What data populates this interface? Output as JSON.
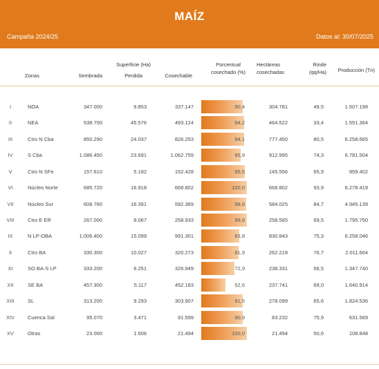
{
  "header": {
    "title": "MAÍZ",
    "campaign": "Campaña 2024/25",
    "date": "Datos al: 30/07/2025",
    "bg_color": "#e07a1c"
  },
  "columns": {
    "zonas": "Zonas",
    "superficie": "Superficie (Ha)",
    "sembrada": "Sembrada",
    "perdida": "Perdida",
    "cosechable": "Cosechable",
    "porcentual_1": "Porcentual",
    "porcentual_2": "cosechado (%)",
    "hectareas_1": "Hectáreas",
    "hectareas_2": "cosechadas",
    "rinde_1": "Rinde",
    "rinde_2": "(qq/Ha)",
    "produccion": "Producción (Tn)"
  },
  "rows": [
    {
      "num": "I",
      "zona": "NOA",
      "sembrada": "347.000",
      "perdida": "9.853",
      "cosechable": "337.147",
      "pct": 90.4,
      "pct_label": "90,4",
      "hectareas": "304.781",
      "rinde": "49,5",
      "produccion": "1.507.198"
    },
    {
      "num": "II",
      "zona": "NEA",
      "sembrada": "538.700",
      "perdida": "45.576",
      "cosechable": "493.124",
      "pct": 94.2,
      "pct_label": "94,2",
      "hectareas": "464.522",
      "rinde": "33,4",
      "produccion": "1.551.364"
    },
    {
      "num": "III",
      "zona": "Ctro N Cba",
      "sembrada": "850.290",
      "perdida": "24.037",
      "cosechable": "826.253",
      "pct": 94.1,
      "pct_label": "94,1",
      "hectareas": "777.450",
      "rinde": "80,5",
      "produccion": "6.258.665"
    },
    {
      "num": "IV",
      "zona": "S Cba",
      "sembrada": "1.086.450",
      "perdida": "23.691",
      "cosechable": "1.062.759",
      "pct": 85.9,
      "pct_label": "85,9",
      "hectareas": "912.995",
      "rinde": "74,3",
      "produccion": "6.781.504"
    },
    {
      "num": "V",
      "zona": "Ctro N SFe",
      "sembrada": "157.610",
      "perdida": "5.182",
      "cosechable": "152.428",
      "pct": 95.5,
      "pct_label": "95,5",
      "hectareas": "145.556",
      "rinde": "65,9",
      "produccion": "959.402"
    },
    {
      "num": "VI",
      "zona": "Núcleo Norte",
      "sembrada": "685.720",
      "perdida": "16.918",
      "cosechable": "668.802",
      "pct": 100.0,
      "pct_label": "100,0",
      "hectareas": "668.802",
      "rinde": "93,9",
      "produccion": "6.278.419"
    },
    {
      "num": "VII",
      "zona": "Núcleo Sur",
      "sembrada": "608.760",
      "perdida": "16.391",
      "cosechable": "592.369",
      "pct": 98.6,
      "pct_label": "98,6",
      "hectareas": "584.025",
      "rinde": "84,7",
      "produccion": "4.945.139"
    },
    {
      "num": "VIII",
      "zona": "Ctro E ER",
      "sembrada": "267.000",
      "perdida": "8.067",
      "cosechable": "258.933",
      "pct": 99.9,
      "pct_label": "99,9",
      "hectareas": "258.565",
      "rinde": "69,5",
      "produccion": "1.795.750"
    },
    {
      "num": "IX",
      "zona": "N LP-OBA",
      "sembrada": "1.006.400",
      "perdida": "15.099",
      "cosechable": "991.301",
      "pct": 83.8,
      "pct_label": "83,8",
      "hectareas": "830.843",
      "rinde": "75,3",
      "produccion": "6.258.046"
    },
    {
      "num": "X",
      "zona": "Ctro BA",
      "sembrada": "330.300",
      "perdida": "10.027",
      "cosechable": "320.273",
      "pct": 81.9,
      "pct_label": "81,9",
      "hectareas": "262.218",
      "rinde": "76,7",
      "produccion": "2.011.664"
    },
    {
      "num": "XI",
      "zona": "SO BA-S LP",
      "sembrada": "333.200",
      "perdida": "6.251",
      "cosechable": "326.949",
      "pct": 72.9,
      "pct_label": "72,9",
      "hectareas": "238.331",
      "rinde": "56,5",
      "produccion": "1.347.740"
    },
    {
      "num": "XII",
      "zona": "SE BA",
      "sembrada": "457.300",
      "perdida": "5.117",
      "cosechable": "452.183",
      "pct": 52.6,
      "pct_label": "52,6",
      "hectareas": "237.741",
      "rinde": "69,0",
      "produccion": "1.640.914"
    },
    {
      "num": "XIII",
      "zona": "SL",
      "sembrada": "313.200",
      "perdida": "9.293",
      "cosechable": "303.907",
      "pct": 91.5,
      "pct_label": "91,5",
      "hectareas": "278.099",
      "rinde": "65,6",
      "produccion": "1.824.536"
    },
    {
      "num": "XIV",
      "zona": "Cuenca Sal",
      "sembrada": "95.070",
      "perdida": "3.471",
      "cosechable": "91.599",
      "pct": 90.9,
      "pct_label": "90,9",
      "hectareas": "83.232",
      "rinde": "75,9",
      "produccion": "631.569"
    },
    {
      "num": "XV",
      "zona": "Otras",
      "sembrada": "23.000",
      "perdida": "1.506",
      "cosechable": "21.494",
      "pct": 100.0,
      "pct_label": "100,0",
      "hectareas": "21.494",
      "rinde": "50,6",
      "produccion": "108.848"
    }
  ]
}
